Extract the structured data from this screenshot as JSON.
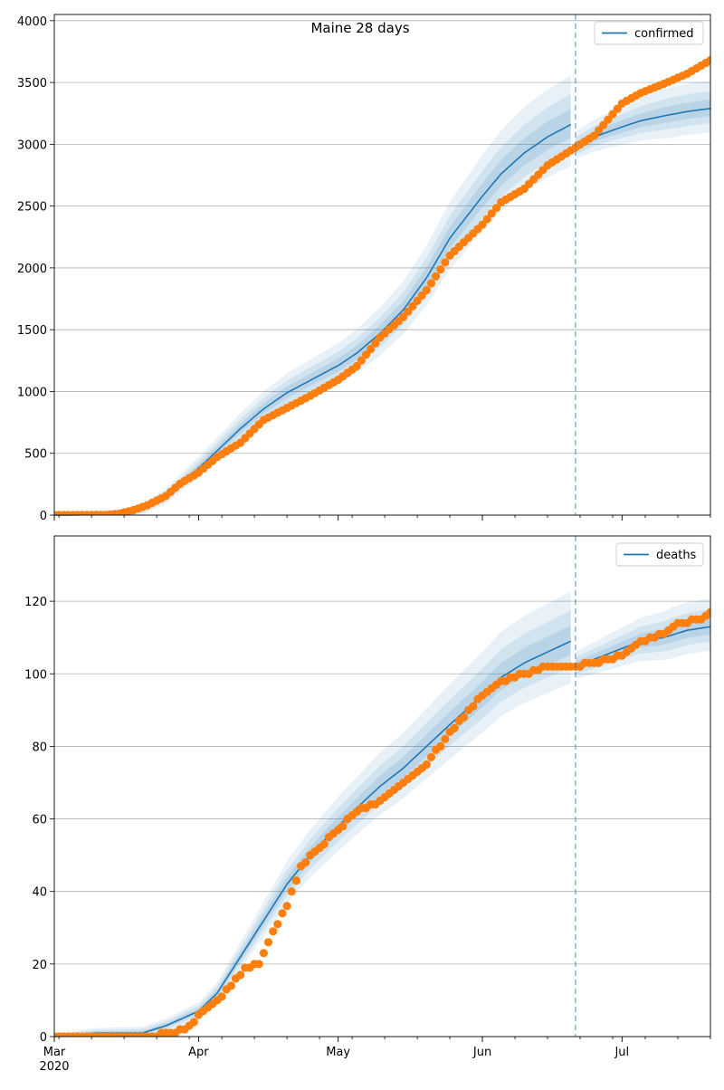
{
  "figure": {
    "title": "Maine 28 days",
    "colors": {
      "model_line": "#1f77b4",
      "observed_points": "#ff7f0e",
      "band": "#1f77b4",
      "grid": "#b0b0b0",
      "forecast_marker": "#1f77b4"
    }
  },
  "chart_data": [
    {
      "type": "line",
      "title": "Maine 28 days",
      "xlabel": "",
      "ylabel": "",
      "ylim": [
        0,
        4050
      ],
      "yticks": [
        0,
        500,
        1000,
        1500,
        2000,
        2500,
        3000,
        3500,
        4000
      ],
      "xlim": [
        "2020-03-01",
        "2020-07-20"
      ],
      "x_major_ticks": [
        {
          "date": "2020-03-01",
          "label": "Mar",
          "sublabel": "2020"
        },
        {
          "date": "2020-04-01",
          "label": "Apr"
        },
        {
          "date": "2020-05-01",
          "label": "May"
        },
        {
          "date": "2020-06-01",
          "label": "Jun"
        },
        {
          "date": "2020-07-01",
          "label": "Jul"
        }
      ],
      "x_tick_labels_visible": false,
      "grid": "horizontal",
      "legend": "top-right",
      "forecast_start": "2020-06-21",
      "series": [
        {
          "name": "confirmed",
          "kind": "model-line",
          "points": [
            [
              "2020-03-01",
              0
            ],
            [
              "2020-03-15",
              5
            ],
            [
              "2020-03-20",
              45
            ],
            [
              "2020-03-25",
              150
            ],
            [
              "2020-04-01",
              380
            ],
            [
              "2020-04-05",
              520
            ],
            [
              "2020-04-10",
              700
            ],
            [
              "2020-04-15",
              860
            ],
            [
              "2020-04-20",
              990
            ],
            [
              "2020-04-25",
              1090
            ],
            [
              "2020-05-01",
              1210
            ],
            [
              "2020-05-05",
              1310
            ],
            [
              "2020-05-10",
              1470
            ],
            [
              "2020-05-15",
              1660
            ],
            [
              "2020-05-20",
              1920
            ],
            [
              "2020-05-25",
              2240
            ],
            [
              "2020-06-01",
              2580
            ],
            [
              "2020-06-05",
              2760
            ],
            [
              "2020-06-10",
              2930
            ],
            [
              "2020-06-15",
              3060
            ],
            [
              "2020-06-20",
              3160
            ],
            [
              "2020-06-21",
              2980
            ],
            [
              "2020-06-25",
              3060
            ],
            [
              "2020-07-01",
              3140
            ],
            [
              "2020-07-05",
              3190
            ],
            [
              "2020-07-10",
              3230
            ],
            [
              "2020-07-15",
              3265
            ],
            [
              "2020-07-20",
              3290
            ]
          ]
        },
        {
          "name": "",
          "kind": "observed-points",
          "points": [
            [
              "2020-03-01",
              1
            ],
            [
              "2020-03-05",
              1
            ],
            [
              "2020-03-10",
              2
            ],
            [
              "2020-03-12",
              2
            ],
            [
              "2020-03-15",
              12
            ],
            [
              "2020-03-18",
              40
            ],
            [
              "2020-03-21",
              80
            ],
            [
              "2020-03-25",
              155
            ],
            [
              "2020-03-28",
              253
            ],
            [
              "2020-04-01",
              344
            ],
            [
              "2020-04-05",
              470
            ],
            [
              "2020-04-10",
              586
            ],
            [
              "2020-04-15",
              770
            ],
            [
              "2020-04-20",
              867
            ],
            [
              "2020-04-25",
              965
            ],
            [
              "2020-05-01",
              1095
            ],
            [
              "2020-05-05",
              1205
            ],
            [
              "2020-05-10",
              1436
            ],
            [
              "2020-05-15",
              1603
            ],
            [
              "2020-05-20",
              1819
            ],
            [
              "2020-05-25",
              2100
            ],
            [
              "2020-06-01",
              2350
            ],
            [
              "2020-06-05",
              2530
            ],
            [
              "2020-06-10",
              2640
            ],
            [
              "2020-06-15",
              2830
            ],
            [
              "2020-06-20",
              2950
            ],
            [
              "2020-06-25",
              3070
            ],
            [
              "2020-07-01",
              3330
            ],
            [
              "2020-07-05",
              3415
            ],
            [
              "2020-07-10",
              3490
            ],
            [
              "2020-07-15",
              3570
            ],
            [
              "2020-07-20",
              3680
            ]
          ]
        }
      ]
    },
    {
      "type": "line",
      "title": "",
      "xlabel": "",
      "ylabel": "",
      "ylim": [
        0,
        138
      ],
      "yticks": [
        0,
        20,
        40,
        60,
        80,
        100,
        120
      ],
      "xlim": [
        "2020-03-01",
        "2020-07-20"
      ],
      "x_major_ticks": [
        {
          "date": "2020-03-01",
          "label": "Mar",
          "sublabel": "2020"
        },
        {
          "date": "2020-04-01",
          "label": "Apr"
        },
        {
          "date": "2020-05-01",
          "label": "May"
        },
        {
          "date": "2020-06-01",
          "label": "Jun"
        },
        {
          "date": "2020-07-01",
          "label": "Jul"
        }
      ],
      "x_tick_labels_visible": true,
      "grid": "horizontal",
      "legend": "top-right",
      "forecast_start": "2020-06-21",
      "series": [
        {
          "name": "deaths",
          "kind": "model-line",
          "points": [
            [
              "2020-03-01",
              0
            ],
            [
              "2020-03-10",
              1
            ],
            [
              "2020-03-20",
              1
            ],
            [
              "2020-03-25",
              3
            ],
            [
              "2020-04-01",
              7
            ],
            [
              "2020-04-05",
              12
            ],
            [
              "2020-04-10",
              22
            ],
            [
              "2020-04-15",
              32
            ],
            [
              "2020-04-20",
              42
            ],
            [
              "2020-04-25",
              50
            ],
            [
              "2020-05-01",
              58
            ],
            [
              "2020-05-05",
              63
            ],
            [
              "2020-05-10",
              69
            ],
            [
              "2020-05-15",
              74
            ],
            [
              "2020-05-20",
              80
            ],
            [
              "2020-05-25",
              86
            ],
            [
              "2020-06-01",
              94
            ],
            [
              "2020-06-05",
              99
            ],
            [
              "2020-06-10",
              103
            ],
            [
              "2020-06-15",
              106
            ],
            [
              "2020-06-20",
              109
            ],
            [
              "2020-06-21",
              102
            ],
            [
              "2020-06-25",
              104
            ],
            [
              "2020-07-01",
              107
            ],
            [
              "2020-07-05",
              109
            ],
            [
              "2020-07-10",
              110
            ],
            [
              "2020-07-15",
              112
            ],
            [
              "2020-07-20",
              113
            ]
          ]
        },
        {
          "name": "",
          "kind": "observed-points",
          "points": [
            [
              "2020-03-01",
              0
            ],
            [
              "2020-03-10",
              0
            ],
            [
              "2020-03-20",
              0
            ],
            [
              "2020-03-27",
              1
            ],
            [
              "2020-03-30",
              3
            ],
            [
              "2020-04-02",
              7
            ],
            [
              "2020-04-05",
              10
            ],
            [
              "2020-04-08",
              14
            ],
            [
              "2020-04-11",
              19
            ],
            [
              "2020-04-14",
              20
            ],
            [
              "2020-04-17",
              29
            ],
            [
              "2020-04-20",
              36
            ],
            [
              "2020-04-23",
              47
            ],
            [
              "2020-04-26",
              51
            ],
            [
              "2020-05-01",
              57
            ],
            [
              "2020-05-05",
              62
            ],
            [
              "2020-05-10",
              65
            ],
            [
              "2020-05-15",
              70
            ],
            [
              "2020-05-20",
              75
            ],
            [
              "2020-05-25",
              84
            ],
            [
              "2020-06-01",
              94
            ],
            [
              "2020-06-05",
              98
            ],
            [
              "2020-06-10",
              100
            ],
            [
              "2020-06-15",
              102
            ],
            [
              "2020-06-20",
              102
            ],
            [
              "2020-06-25",
              103
            ],
            [
              "2020-07-01",
              105
            ],
            [
              "2020-07-05",
              109
            ],
            [
              "2020-07-10",
              111
            ],
            [
              "2020-07-13",
              114
            ],
            [
              "2020-07-18",
              115
            ],
            [
              "2020-07-20",
              117
            ]
          ]
        }
      ]
    }
  ]
}
